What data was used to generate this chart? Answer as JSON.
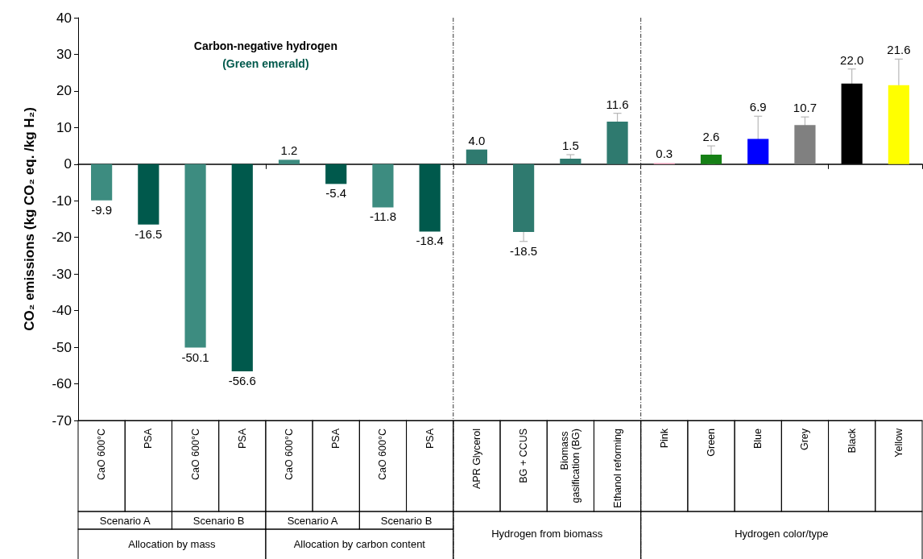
{
  "chart_data": {
    "type": "bar",
    "ylabel": "CO₂ emissions (kg CO₂ eq. /kg H₂)",
    "categories": [
      "CaO 600°C",
      "PSA",
      "CaO 600°C",
      "PSA",
      "CaO 600°C",
      "PSA",
      "CaO 600°C",
      "PSA",
      "APR Glycerol",
      "BG + CCUS",
      "Biomass gasification (BG)",
      "Ethanol reforming",
      "Pink",
      "Green",
      "Blue",
      "Grey",
      "Black",
      "Yellow"
    ],
    "values": [
      -9.9,
      -16.5,
      -50.1,
      -56.6,
      1.2,
      -5.4,
      -11.8,
      -18.4,
      4.0,
      -18.5,
      1.5,
      11.6,
      0.3,
      2.6,
      6.9,
      10.7,
      22.0,
      21.6
    ],
    "colors": [
      "#3d8c80",
      "#00594c",
      "#3d8c80",
      "#00594c",
      "#3d8c80",
      "#00594c",
      "#3d8c80",
      "#00594c",
      "#2f7a6f",
      "#2f7a6f",
      "#2f7a6f",
      "#2f7a6f",
      "#f4a6c0",
      "#168016",
      "#0000ff",
      "#808080",
      "#000000",
      "#ffff00"
    ],
    "errors": [
      null,
      null,
      null,
      null,
      null,
      null,
      null,
      null,
      null,
      2.6,
      1.1,
      2.3,
      null,
      2.4,
      6.2,
      2.2,
      4.0,
      7.1
    ],
    "value_labels": [
      "-9.9",
      "-16.5",
      "-50.1",
      "-56.6",
      "1.2",
      "-5.4",
      "-11.8",
      "-18.4",
      "4.0",
      "-18.5",
      "1.5",
      "11.6",
      "0.3",
      "2.6",
      "6.9",
      "10.7",
      "22.0",
      "21.6"
    ],
    "ylim": [
      -70,
      40
    ],
    "yticks": [
      -70,
      -60,
      -50,
      -40,
      -30,
      -20,
      -10,
      0,
      10,
      20,
      30,
      40
    ],
    "grid": false,
    "annotations": [
      "Carbon-negative hydrogen",
      "(Green emerald)",
      "Scenario A",
      "Scenario B",
      "Scenario A",
      "Scenario B",
      "Allocation by mass",
      "Allocation by carbon content",
      "Hydrogen from biomass",
      "Hydrogen color/type"
    ]
  }
}
